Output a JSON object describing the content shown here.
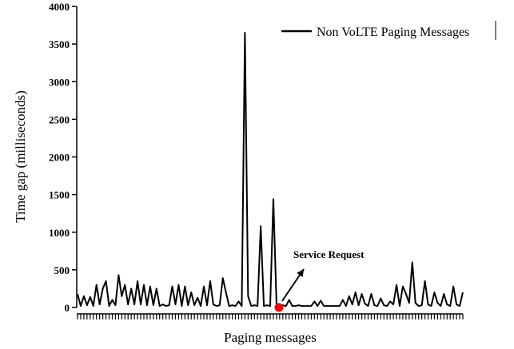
{
  "chart_data": {
    "type": "line",
    "xlabel": "Paging messages",
    "ylabel": "Time gap (milliseconds)",
    "ylim": [
      0,
      4000
    ],
    "yticks": [
      0,
      500,
      1000,
      1500,
      2000,
      2500,
      3000,
      3500,
      4000
    ],
    "legend": {
      "position": "top-right"
    },
    "series": [
      {
        "name": "Non VoLTE Paging Messages",
        "color": "#000000",
        "values": [
          180,
          20,
          150,
          30,
          140,
          20,
          300,
          40,
          250,
          350,
          20,
          100,
          30,
          430,
          150,
          300,
          40,
          250,
          40,
          350,
          40,
          300,
          30,
          280,
          30,
          250,
          20,
          40,
          20,
          30,
          280,
          40,
          300,
          20,
          280,
          30,
          200,
          30,
          130,
          20,
          280,
          30,
          350,
          40,
          20,
          30,
          390,
          200,
          20,
          30,
          20,
          80,
          20,
          3650,
          150,
          20,
          30,
          20,
          1080,
          20,
          30,
          20,
          1440,
          50,
          20,
          30,
          20,
          100,
          20,
          20,
          30,
          20,
          20,
          20,
          20,
          80,
          20,
          90,
          20,
          20,
          20,
          20,
          20,
          20,
          100,
          20,
          150,
          40,
          200,
          30,
          180,
          50,
          20,
          180,
          30,
          20,
          120,
          30,
          20,
          80,
          40,
          300,
          20,
          280,
          180,
          60,
          600,
          60,
          20,
          30,
          350,
          40,
          20,
          200,
          60,
          20,
          180,
          40,
          20,
          280,
          40,
          20,
          200
        ]
      }
    ],
    "annotations": [
      {
        "text": "Service Request",
        "point_index": 63,
        "value": 0,
        "marker_color": "#ff0000"
      }
    ]
  }
}
